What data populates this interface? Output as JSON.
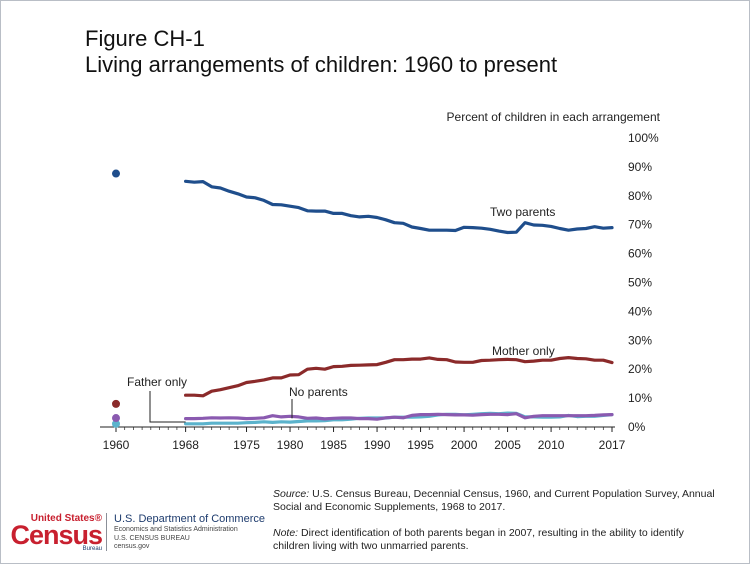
{
  "figure": {
    "number": "Figure CH-1",
    "title": "Living arrangements of children: 1960 to present"
  },
  "chart_data": {
    "type": "line",
    "ylabel": "Percent of children in each arrangement",
    "ylim": [
      0,
      100
    ],
    "yticks": [
      "0%",
      "10%",
      "20%",
      "30%",
      "40%",
      "50%",
      "60%",
      "70%",
      "80%",
      "90%",
      "100%"
    ],
    "xticks": [
      "1960",
      "1968",
      "1975",
      "1980",
      "1985",
      "1990",
      "1995",
      "2000",
      "2005",
      "2010",
      "2017"
    ],
    "grid": false,
    "series": [
      {
        "name": "Two parents",
        "color": "#1f4e8c",
        "point_1960": 87.7,
        "x": [
          1968,
          1969,
          1970,
          1971,
          1972,
          1973,
          1974,
          1975,
          1976,
          1977,
          1978,
          1979,
          1980,
          1981,
          1982,
          1983,
          1984,
          1985,
          1986,
          1987,
          1988,
          1989,
          1990,
          1991,
          1992,
          1993,
          1994,
          1995,
          1996,
          1997,
          1998,
          1999,
          2000,
          2001,
          2002,
          2003,
          2004,
          2005,
          2006,
          2007,
          2008,
          2009,
          2010,
          2011,
          2012,
          2013,
          2014,
          2015,
          2016,
          2017
        ],
        "values": [
          85,
          84.7,
          84.9,
          83.1,
          82.7,
          81.6,
          80.7,
          79.6,
          79.3,
          78.4,
          77,
          76.9,
          76.4,
          75.9,
          74.8,
          74.7,
          74.7,
          73.9,
          73.9,
          73.1,
          72.7,
          72.9,
          72.5,
          71.7,
          70.7,
          70.5,
          69.2,
          68.7,
          68.1,
          68.1,
          68.1,
          68,
          69.1,
          69,
          68.8,
          68.4,
          67.8,
          67.3,
          67.4,
          70.7,
          69.9,
          69.8,
          69.4,
          68.7,
          68.1,
          68.5,
          68.7,
          69.3,
          68.8,
          69
        ]
      },
      {
        "name": "Mother only",
        "color": "#8b2a2a",
        "point_1960": 8,
        "x": [
          1968,
          1969,
          1970,
          1971,
          1972,
          1973,
          1974,
          1975,
          1976,
          1977,
          1978,
          1979,
          1980,
          1981,
          1982,
          1983,
          1984,
          1985,
          1986,
          1987,
          1988,
          1989,
          1990,
          1991,
          1992,
          1993,
          1994,
          1995,
          1996,
          1997,
          1998,
          1999,
          2000,
          2001,
          2002,
          2003,
          2004,
          2005,
          2006,
          2007,
          2008,
          2009,
          2010,
          2011,
          2012,
          2013,
          2014,
          2015,
          2016,
          2017
        ],
        "values": [
          11,
          11,
          10.8,
          12.4,
          12.9,
          13.6,
          14.3,
          15.4,
          15.8,
          16.3,
          17,
          17,
          18,
          18.1,
          20,
          20.3,
          20,
          20.9,
          21,
          21.3,
          21.4,
          21.5,
          21.6,
          22.4,
          23.3,
          23.3,
          23.5,
          23.5,
          23.9,
          23.4,
          23.3,
          22.5,
          22.4,
          22.4,
          23,
          23.1,
          23.3,
          23.4,
          23.3,
          22.6,
          22.8,
          23.1,
          23.1,
          23.7,
          24,
          23.7,
          23.6,
          23.1,
          23.1,
          22.3
        ]
      },
      {
        "name": "No parents",
        "color": "#8a5ab0",
        "point_1960": 3.1,
        "x": [
          1968,
          1969,
          1970,
          1971,
          1972,
          1973,
          1974,
          1975,
          1976,
          1977,
          1978,
          1979,
          1980,
          1981,
          1982,
          1983,
          1984,
          1985,
          1986,
          1987,
          1988,
          1989,
          1990,
          1991,
          1992,
          1993,
          1994,
          1995,
          1996,
          1997,
          1998,
          1999,
          2000,
          2001,
          2002,
          2003,
          2004,
          2005,
          2006,
          2007,
          2008,
          2009,
          2010,
          2011,
          2012,
          2013,
          2014,
          2015,
          2016,
          2017
        ],
        "values": [
          2.9,
          2.9,
          3,
          3.2,
          3.1,
          3.2,
          3.1,
          2.9,
          3,
          3.2,
          3.9,
          3.5,
          3.7,
          3.5,
          3,
          3.1,
          2.8,
          3,
          3.1,
          3.1,
          2.9,
          2.9,
          2.7,
          3.2,
          3.4,
          3.2,
          4,
          4.3,
          4.3,
          4.4,
          4.3,
          4.2,
          4.2,
          4.1,
          4.3,
          4.4,
          4.4,
          4.3,
          4.6,
          3.2,
          3.7,
          3.9,
          3.9,
          3.9,
          3.9,
          3.9,
          3.9,
          4,
          4.2,
          4.3
        ]
      },
      {
        "name": "Father only",
        "color": "#5bb3cc",
        "point_1960": 1.1,
        "x": [
          1968,
          1969,
          1970,
          1971,
          1972,
          1973,
          1974,
          1975,
          1976,
          1977,
          1978,
          1979,
          1980,
          1981,
          1982,
          1983,
          1984,
          1985,
          1986,
          1987,
          1988,
          1989,
          1990,
          1991,
          1992,
          1993,
          1994,
          1995,
          1996,
          1997,
          1998,
          1999,
          2000,
          2001,
          2002,
          2003,
          2004,
          2005,
          2006,
          2007,
          2008,
          2009,
          2010,
          2011,
          2012,
          2013,
          2014,
          2015,
          2016,
          2017
        ],
        "values": [
          1.1,
          1.1,
          1.1,
          1.3,
          1.3,
          1.3,
          1.3,
          1.5,
          1.6,
          1.8,
          1.6,
          1.8,
          1.7,
          1.9,
          2.1,
          2.1,
          2.2,
          2.5,
          2.5,
          2.7,
          3,
          3.1,
          3.1,
          3.1,
          3.4,
          3.4,
          3.4,
          3.5,
          3.7,
          4.2,
          4.4,
          4.4,
          4.2,
          4.4,
          4.6,
          4.7,
          4.6,
          4.8,
          4.7,
          3.5,
          3.5,
          3.4,
          3.4,
          3.5,
          4,
          3.6,
          3.7,
          3.7,
          4,
          4.3
        ]
      }
    ]
  },
  "source": {
    "label": "Source:",
    "text": " U.S. Census Bureau, Decennial Census, 1960, and Current Population Survey, Annual Social and Economic Supplements, 1968 to 2017."
  },
  "note": {
    "label": "Note:",
    "text": " Direct identification of both parents began in 2007, resulting in the ability to identify children living with two unmarried parents."
  },
  "branding": {
    "logo_top": "United States®",
    "logo_main": "Census",
    "logo_bureau": "Bureau",
    "dept_name": "U.S. Department of Commerce",
    "dept_line1": "Economics and Statistics Administration",
    "dept_line2": "U.S. CENSUS BUREAU",
    "dept_line3": "census.gov",
    "brand_color": "#c8202f",
    "navy_color": "#1d3b6d"
  }
}
